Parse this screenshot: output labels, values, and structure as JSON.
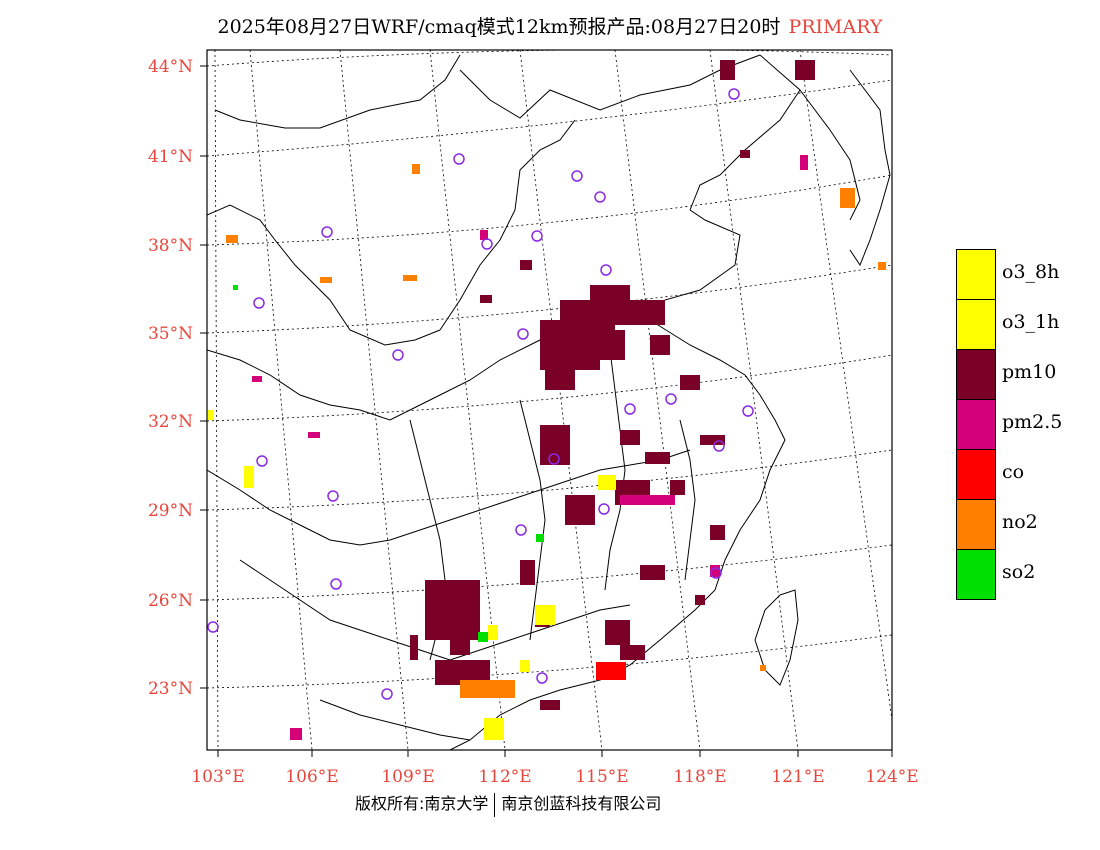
{
  "title": {
    "main": "2025年08月27日WRF/cmaq模式12km预报产品:08月27日20时",
    "highlight": "PRIMARY"
  },
  "map": {
    "lat_labels": [
      "44°N",
      "41°N",
      "38°N",
      "35°N",
      "32°N",
      "29°N",
      "26°N",
      "23°N"
    ],
    "lon_labels": [
      "103°E",
      "106°E",
      "109°E",
      "112°E",
      "115°E",
      "118°E",
      "121°E",
      "124°E"
    ],
    "colors": {
      "o3_8h": "#ffff00",
      "o3_1h": "#ffff00",
      "pm10": "#7a0028",
      "pm2.5": "#d4007a",
      "co": "#ff0000",
      "no2": "#ff7f00",
      "so2": "#00e000",
      "station": "#8a2be2",
      "tick": "#e8463c"
    }
  },
  "legend": [
    {
      "label": "o3_8h",
      "color": "#ffff00"
    },
    {
      "label": "o3_1h",
      "color": "#ffff00"
    },
    {
      "label": "pm10",
      "color": "#7a0028"
    },
    {
      "label": "pm2.5",
      "color": "#d4007a"
    },
    {
      "label": "co",
      "color": "#ff0000"
    },
    {
      "label": "no2",
      "color": "#ff7f00"
    },
    {
      "label": "so2",
      "color": "#00e000"
    }
  ],
  "copyright": {
    "left": "版权所有:南京大学",
    "right": "南京创蓝科技有限公司"
  }
}
